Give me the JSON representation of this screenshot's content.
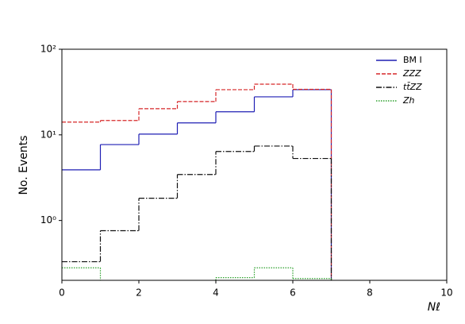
{
  "chart_data": {
    "type": "step-histogram",
    "xlabel": "Nℓ",
    "ylabel": "No. Events",
    "bins": [
      0,
      1,
      2,
      3,
      4,
      5,
      6,
      7
    ],
    "series": [
      {
        "name": "BM I",
        "color": "#1f1fb4",
        "dash": "",
        "values": [
          3.9,
          7.7,
          10.2,
          13.8,
          18.6,
          27.8,
          33.7
        ]
      },
      {
        "name": "ZZZ",
        "color": "#d62728",
        "dash": "5,2",
        "values": [
          14.1,
          14.7,
          20.2,
          24.5,
          33.7,
          39.1,
          34
        ]
      },
      {
        "name": "tt̄ZZ",
        "color": "#111111",
        "dash": "7,2,1.5,2",
        "values": [
          0.33,
          0.76,
          1.82,
          3.44,
          6.4,
          7.4,
          5.3
        ]
      },
      {
        "name": "Zh",
        "color": "#2ca02c",
        "dash": "1.5,1.5",
        "values": [
          0.28,
          null,
          null,
          null,
          0.215,
          0.28,
          0.21
        ]
      }
    ],
    "xlim": [
      0,
      10
    ],
    "xticks": [
      0,
      2,
      4,
      6,
      8,
      10
    ],
    "ylim": [
      0.2,
      100
    ],
    "log_y": true,
    "yticks": [
      {
        "value": 1,
        "label": "10⁰"
      },
      {
        "value": 10,
        "label": "10¹"
      },
      {
        "value": 100,
        "label": "10²"
      }
    ],
    "legend": "upper-right"
  }
}
